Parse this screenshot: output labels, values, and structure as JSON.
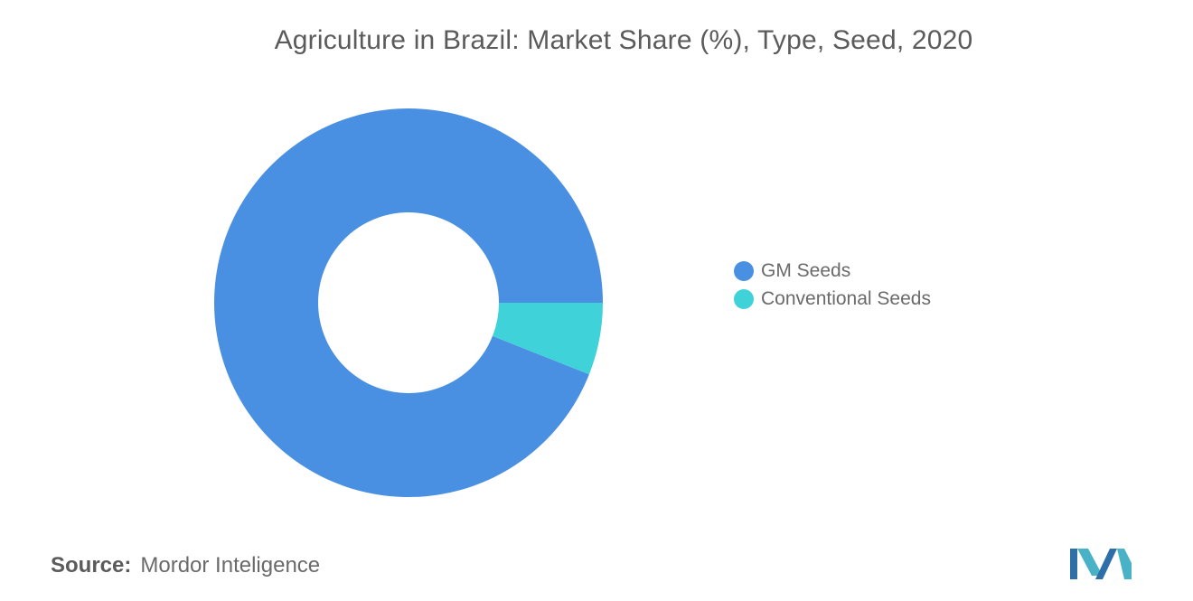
{
  "chart_data": {
    "type": "pie",
    "title": "Agriculture in Brazil: Market Share (%), Type, Seed, 2020",
    "categories": [
      "GM Seeds",
      "Conventional Seeds"
    ],
    "values": [
      94,
      6
    ],
    "colors": [
      "#4a90e2",
      "#3fd3d9"
    ],
    "legend": "right"
  },
  "source": {
    "label": "Source:",
    "text": "Mordor Inteligence"
  },
  "logo": {
    "icon": "mordor-intelligence-logo"
  }
}
